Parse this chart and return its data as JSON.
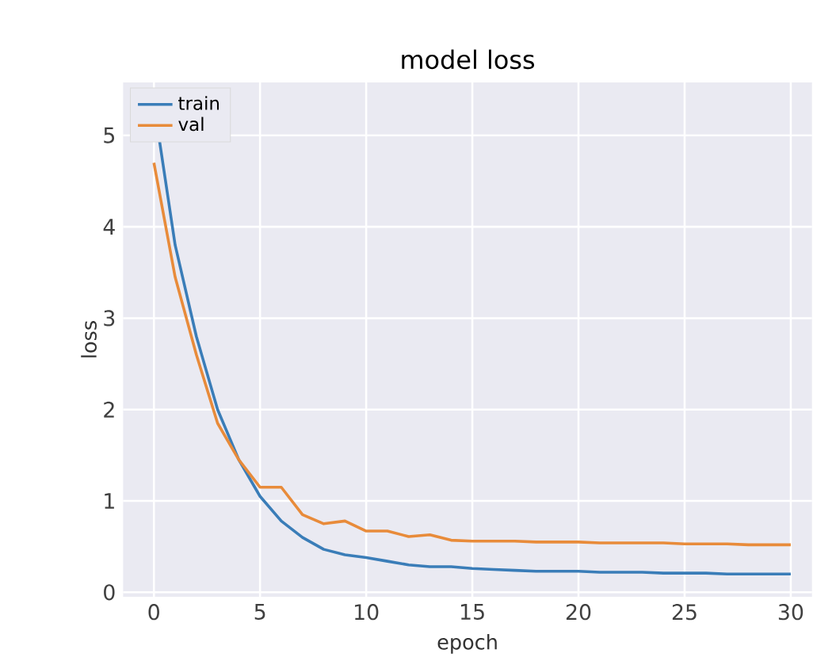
{
  "chart_data": {
    "type": "line",
    "title": "model loss",
    "xlabel": "epoch",
    "ylabel": "loss",
    "x": [
      0,
      1,
      2,
      3,
      4,
      5,
      6,
      7,
      8,
      9,
      10,
      11,
      12,
      13,
      14,
      15,
      16,
      17,
      18,
      19,
      20,
      21,
      22,
      23,
      24,
      25,
      26,
      27,
      28,
      29,
      30
    ],
    "series": [
      {
        "name": "train",
        "color": "#3a7db8",
        "values": [
          5.35,
          3.8,
          2.8,
          2.0,
          1.45,
          1.05,
          0.78,
          0.6,
          0.47,
          0.41,
          0.38,
          0.34,
          0.3,
          0.28,
          0.28,
          0.26,
          0.25,
          0.24,
          0.23,
          0.23,
          0.23,
          0.22,
          0.22,
          0.22,
          0.21,
          0.21,
          0.21,
          0.2,
          0.2,
          0.2,
          0.2
        ]
      },
      {
        "name": "val",
        "color": "#e88b3a",
        "values": [
          4.7,
          3.45,
          2.6,
          1.85,
          1.45,
          1.15,
          1.15,
          0.85,
          0.75,
          0.78,
          0.67,
          0.67,
          0.61,
          0.63,
          0.57,
          0.56,
          0.56,
          0.56,
          0.55,
          0.55,
          0.55,
          0.54,
          0.54,
          0.54,
          0.54,
          0.53,
          0.53,
          0.53,
          0.52,
          0.52,
          0.52
        ]
      }
    ],
    "xlim": [
      -1.45,
      31
    ],
    "ylim": [
      -0.05,
      5.58
    ],
    "xticks": [
      0,
      5,
      10,
      15,
      20,
      25,
      30
    ],
    "yticks": [
      0,
      1,
      2,
      3,
      4,
      5
    ],
    "grid": true,
    "legend": "top left",
    "marker": "none",
    "line_style": "solid"
  }
}
